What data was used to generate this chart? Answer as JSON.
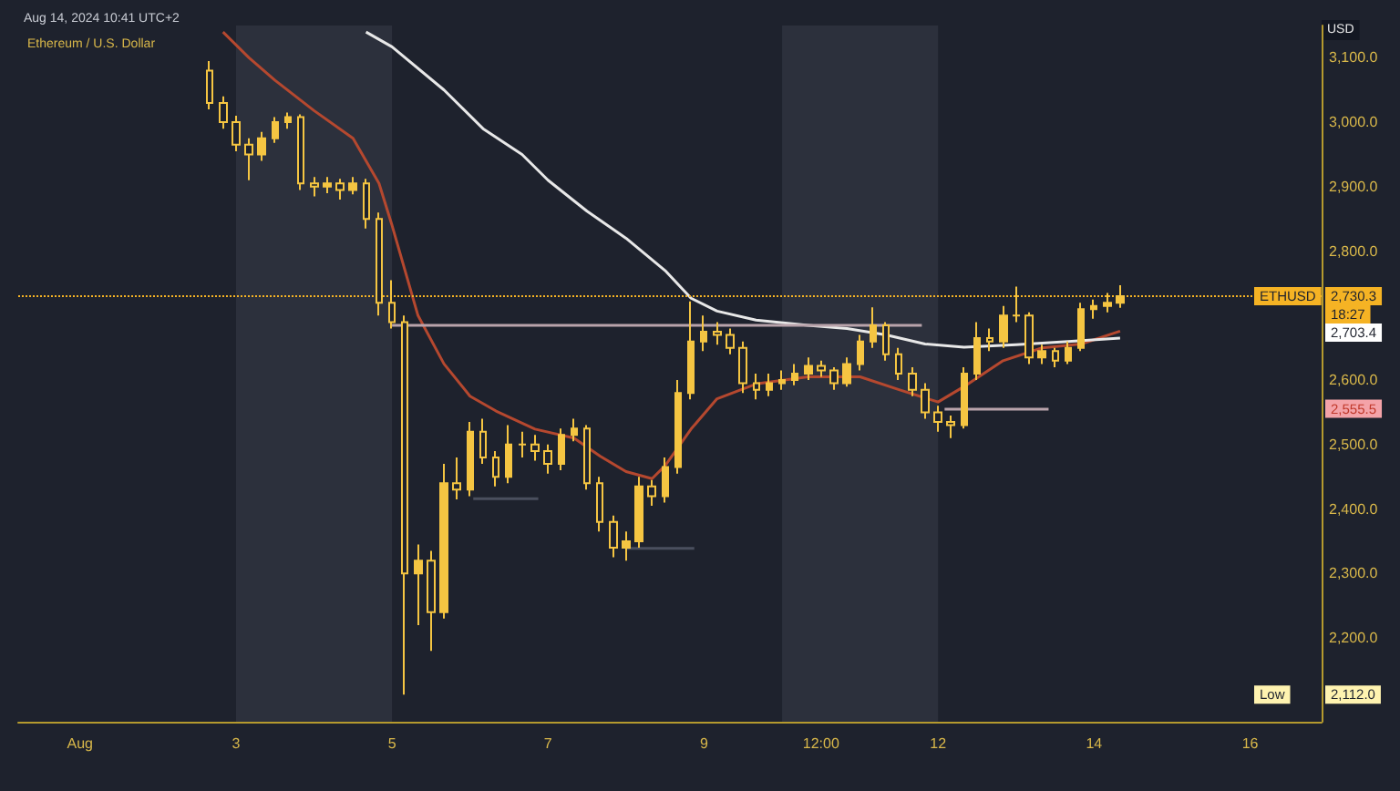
{
  "chart_data": {
    "type": "candlestick",
    "title": "Ethereum / U.S. Dollar",
    "subtitle": "Aug 14, 2024 10:41 UTC+2",
    "ylabel": "USD",
    "x": [
      "2024-08-02T16:00",
      "2024-08-02T20:00",
      "2024-08-03T00:00",
      "2024-08-03T04:00",
      "2024-08-03T08:00",
      "2024-08-03T12:00",
      "2024-08-03T16:00",
      "2024-08-03T20:00",
      "2024-08-04T00:00",
      "2024-08-04T04:00",
      "2024-08-04T08:00",
      "2024-08-04T12:00",
      "2024-08-04T16:00",
      "2024-08-04T20:00",
      "2024-08-05T00:00",
      "2024-08-05T04:00",
      "2024-08-05T08:00",
      "2024-08-05T12:00",
      "2024-08-05T16:00",
      "2024-08-05T20:00",
      "2024-08-06T00:00",
      "2024-08-06T04:00",
      "2024-08-06T08:00",
      "2024-08-06T12:00",
      "2024-08-06T16:00",
      "2024-08-06T20:00",
      "2024-08-07T00:00",
      "2024-08-07T04:00",
      "2024-08-07T08:00",
      "2024-08-07T12:00",
      "2024-08-07T16:00",
      "2024-08-07T20:00",
      "2024-08-08T00:00",
      "2024-08-08T04:00",
      "2024-08-08T08:00",
      "2024-08-08T12:00",
      "2024-08-08T16:00",
      "2024-08-08T20:00",
      "2024-08-09T00:00",
      "2024-08-09T04:00",
      "2024-08-09T08:00",
      "2024-08-09T12:00",
      "2024-08-09T16:00",
      "2024-08-09T20:00",
      "2024-08-10T00:00",
      "2024-08-10T04:00",
      "2024-08-10T08:00",
      "2024-08-10T12:00",
      "2024-08-10T16:00",
      "2024-08-10T20:00",
      "2024-08-11T00:00",
      "2024-08-11T04:00",
      "2024-08-11T08:00",
      "2024-08-11T12:00",
      "2024-08-11T16:00",
      "2024-08-11T20:00",
      "2024-08-12T00:00",
      "2024-08-12T04:00",
      "2024-08-12T08:00",
      "2024-08-12T12:00",
      "2024-08-12T16:00",
      "2024-08-12T20:00",
      "2024-08-13T00:00",
      "2024-08-13T04:00",
      "2024-08-13T08:00",
      "2024-08-13T12:00",
      "2024-08-13T16:00",
      "2024-08-13T20:00",
      "2024-08-14T00:00",
      "2024-08-14T04:00",
      "2024-08-14T08:00"
    ],
    "ohlc": [
      [
        3080,
        3095,
        3020,
        3030
      ],
      [
        3030,
        3040,
        2990,
        3000
      ],
      [
        3000,
        3010,
        2955,
        2965
      ],
      [
        2965,
        2975,
        2910,
        2950
      ],
      [
        2950,
        2985,
        2940,
        2975
      ],
      [
        2975,
        3008,
        2968,
        3000
      ],
      [
        3000,
        3015,
        2990,
        3008
      ],
      [
        3008,
        3012,
        2895,
        2905
      ],
      [
        2905,
        2915,
        2885,
        2900
      ],
      [
        2900,
        2915,
        2890,
        2905
      ],
      [
        2905,
        2912,
        2880,
        2895
      ],
      [
        2895,
        2915,
        2888,
        2905
      ],
      [
        2905,
        2912,
        2835,
        2850
      ],
      [
        2850,
        2860,
        2700,
        2720
      ],
      [
        2720,
        2755,
        2680,
        2690
      ],
      [
        2690,
        2700,
        2112,
        2300
      ],
      [
        2300,
        2345,
        2220,
        2320
      ],
      [
        2320,
        2335,
        2180,
        2240
      ],
      [
        2240,
        2470,
        2230,
        2440
      ],
      [
        2440,
        2480,
        2415,
        2430
      ],
      [
        2430,
        2535,
        2420,
        2520
      ],
      [
        2520,
        2540,
        2470,
        2480
      ],
      [
        2480,
        2490,
        2435,
        2450
      ],
      [
        2450,
        2530,
        2440,
        2500
      ],
      [
        2500,
        2520,
        2480,
        2500
      ],
      [
        2500,
        2515,
        2475,
        2490
      ],
      [
        2490,
        2500,
        2455,
        2470
      ],
      [
        2470,
        2525,
        2460,
        2515
      ],
      [
        2515,
        2540,
        2505,
        2525
      ],
      [
        2525,
        2530,
        2430,
        2440
      ],
      [
        2440,
        2450,
        2365,
        2380
      ],
      [
        2380,
        2390,
        2325,
        2340
      ],
      [
        2340,
        2365,
        2320,
        2350
      ],
      [
        2350,
        2450,
        2340,
        2435
      ],
      [
        2435,
        2445,
        2405,
        2420
      ],
      [
        2420,
        2480,
        2410,
        2465
      ],
      [
        2465,
        2600,
        2455,
        2580
      ],
      [
        2580,
        2722,
        2570,
        2660
      ],
      [
        2660,
        2700,
        2645,
        2675
      ],
      [
        2675,
        2690,
        2655,
        2670
      ],
      [
        2670,
        2680,
        2640,
        2650
      ],
      [
        2650,
        2660,
        2580,
        2595
      ],
      [
        2595,
        2610,
        2570,
        2585
      ],
      [
        2585,
        2610,
        2575,
        2595
      ],
      [
        2595,
        2615,
        2585,
        2600
      ],
      [
        2600,
        2625,
        2592,
        2610
      ],
      [
        2610,
        2635,
        2600,
        2622
      ],
      [
        2622,
        2630,
        2605,
        2615
      ],
      [
        2615,
        2620,
        2585,
        2595
      ],
      [
        2595,
        2635,
        2590,
        2625
      ],
      [
        2625,
        2670,
        2615,
        2660
      ],
      [
        2660,
        2713,
        2650,
        2685
      ],
      [
        2685,
        2690,
        2630,
        2640
      ],
      [
        2640,
        2650,
        2600,
        2610
      ],
      [
        2610,
        2620,
        2575,
        2585
      ],
      [
        2585,
        2595,
        2540,
        2550
      ],
      [
        2550,
        2560,
        2520,
        2535
      ],
      [
        2535,
        2545,
        2510,
        2530
      ],
      [
        2530,
        2620,
        2525,
        2610
      ],
      [
        2610,
        2690,
        2600,
        2665
      ],
      [
        2665,
        2680,
        2645,
        2660
      ],
      [
        2660,
        2715,
        2650,
        2700
      ],
      [
        2700,
        2745,
        2690,
        2700
      ],
      [
        2700,
        2705,
        2625,
        2635
      ],
      [
        2635,
        2655,
        2625,
        2645
      ],
      [
        2645,
        2650,
        2620,
        2630
      ],
      [
        2630,
        2660,
        2625,
        2650
      ],
      [
        2650,
        2720,
        2645,
        2710
      ],
      [
        2710,
        2725,
        2695,
        2715
      ],
      [
        2715,
        2735,
        2705,
        2720
      ],
      [
        2720,
        2747,
        2712,
        2730.3
      ]
    ],
    "color": "#f5c542",
    "series": [
      {
        "type": "line",
        "color": "#b5482f",
        "x": [
          "2024-08-02T20:00",
          "2024-08-03T04:00",
          "2024-08-03T12:00",
          "2024-08-04T00:00",
          "2024-08-04T12:00",
          "2024-08-04T20:00",
          "2024-08-05T00:00",
          "2024-08-05T08:00",
          "2024-08-05T16:00",
          "2024-08-06T00:00",
          "2024-08-06T08:00",
          "2024-08-06T20:00",
          "2024-08-07T08:00",
          "2024-08-07T16:00",
          "2024-08-08T00:00",
          "2024-08-08T08:00",
          "2024-08-08T12:00",
          "2024-08-08T20:00",
          "2024-08-09T04:00",
          "2024-08-09T16:00",
          "2024-08-10T08:00",
          "2024-08-11T00:00",
          "2024-08-11T12:00",
          "2024-08-12T00:00",
          "2024-08-12T08:00",
          "2024-08-12T20:00",
          "2024-08-13T08:00",
          "2024-08-13T20:00",
          "2024-08-14T08:00"
        ],
        "values": [
          3140,
          3100,
          3065,
          3018,
          2975,
          2905,
          2840,
          2700,
          2625,
          2575,
          2552,
          2524,
          2510,
          2482,
          2458,
          2447,
          2467,
          2524,
          2571,
          2594,
          2605,
          2605,
          2585,
          2566,
          2590,
          2630,
          2650,
          2656,
          2676
        ]
      },
      {
        "type": "line",
        "color": "#e8e8e8",
        "x": [
          "2024-08-04T16:00",
          "2024-08-05T00:00",
          "2024-08-05T16:00",
          "2024-08-06T04:00",
          "2024-08-06T16:00",
          "2024-08-07T00:00",
          "2024-08-07T12:00",
          "2024-08-08T00:00",
          "2024-08-08T12:00",
          "2024-08-08T20:00",
          "2024-08-09T04:00",
          "2024-08-09T16:00",
          "2024-08-10T08:00",
          "2024-08-10T20:00",
          "2024-08-11T08:00",
          "2024-08-11T20:00",
          "2024-08-12T08:00",
          "2024-08-13T00:00",
          "2024-08-13T16:00",
          "2024-08-14T08:00"
        ],
        "values": [
          3140,
          3117,
          3050,
          2990,
          2950,
          2910,
          2862,
          2820,
          2770,
          2727,
          2707,
          2693,
          2685,
          2680,
          2670,
          2656,
          2651,
          2655,
          2660,
          2665
        ]
      },
      {
        "type": "line",
        "color": "#b9a3ab",
        "x": [
          "2024-08-05T00:00",
          "2024-08-11T19:00"
        ],
        "values": [
          2685,
          2685
        ]
      },
      {
        "type": "line",
        "color": "#b9a3ab",
        "x": [
          "2024-08-12T02:00",
          "2024-08-13T10:00"
        ],
        "values": [
          2555,
          2555
        ]
      },
      {
        "type": "line",
        "color": "#4a4f5e",
        "x": [
          "2024-08-06T01:00",
          "2024-08-06T21:00"
        ],
        "values": [
          2416,
          2416
        ]
      },
      {
        "type": "line",
        "color": "#4a4f5e",
        "x": [
          "2024-08-08T00:00",
          "2024-08-08T21:00"
        ],
        "values": [
          2339,
          2339
        ]
      }
    ],
    "xlim": [
      "2024-07-31T05:00",
      "2024-08-16T22:00"
    ],
    "xticks": [
      {
        "value": "2024-08-01",
        "label": "Aug"
      },
      {
        "value": "2024-08-03",
        "label": "3"
      },
      {
        "value": "2024-08-05",
        "label": "5"
      },
      {
        "value": "2024-08-07",
        "label": "7"
      },
      {
        "value": "2024-08-09",
        "label": "9"
      },
      {
        "value": "2024-08-10T12:00",
        "label": "12:00"
      },
      {
        "value": "2024-08-12",
        "label": "12"
      },
      {
        "value": "2024-08-14",
        "label": "14"
      },
      {
        "value": "2024-08-16",
        "label": "16"
      }
    ],
    "ylim": [
      2070,
      3150
    ],
    "yticks": [
      {
        "value": 2200,
        "label": "2,200.0"
      },
      {
        "value": 2300,
        "label": "2,300.0"
      },
      {
        "value": 2400,
        "label": "2,400.0"
      },
      {
        "value": 2500,
        "label": "2,500.0"
      },
      {
        "value": 2600,
        "label": "2,600.0"
      },
      {
        "value": 2800,
        "label": "2,800.0"
      },
      {
        "value": 2900,
        "label": "2,900.0"
      },
      {
        "value": 3000,
        "label": "3,000.0"
      },
      {
        "value": 3100,
        "label": "3,100.0"
      }
    ],
    "bands": [
      {
        "axis": "x",
        "from": "2024-08-03",
        "to": "2024-08-05",
        "color": "#2c303c"
      },
      {
        "axis": "x",
        "from": "2024-08-10",
        "to": "2024-08-12",
        "color": "#2c303c"
      }
    ],
    "ref_lines": [
      {
        "axis": "y",
        "value": 2730.3,
        "color": "#f5b324",
        "line_style": "dotted"
      }
    ],
    "annotations": [
      {
        "text": "ETHUSD",
        "y": 2730.3
      },
      {
        "text": "2,730.3",
        "y": 2730.3
      },
      "18:27",
      "2,703.4",
      {
        "text": "2,555.5",
        "y": 2555.5
      },
      {
        "text": "Low",
        "y": 2112
      },
      {
        "text": "2,112.0",
        "y": 2112
      }
    ]
  }
}
